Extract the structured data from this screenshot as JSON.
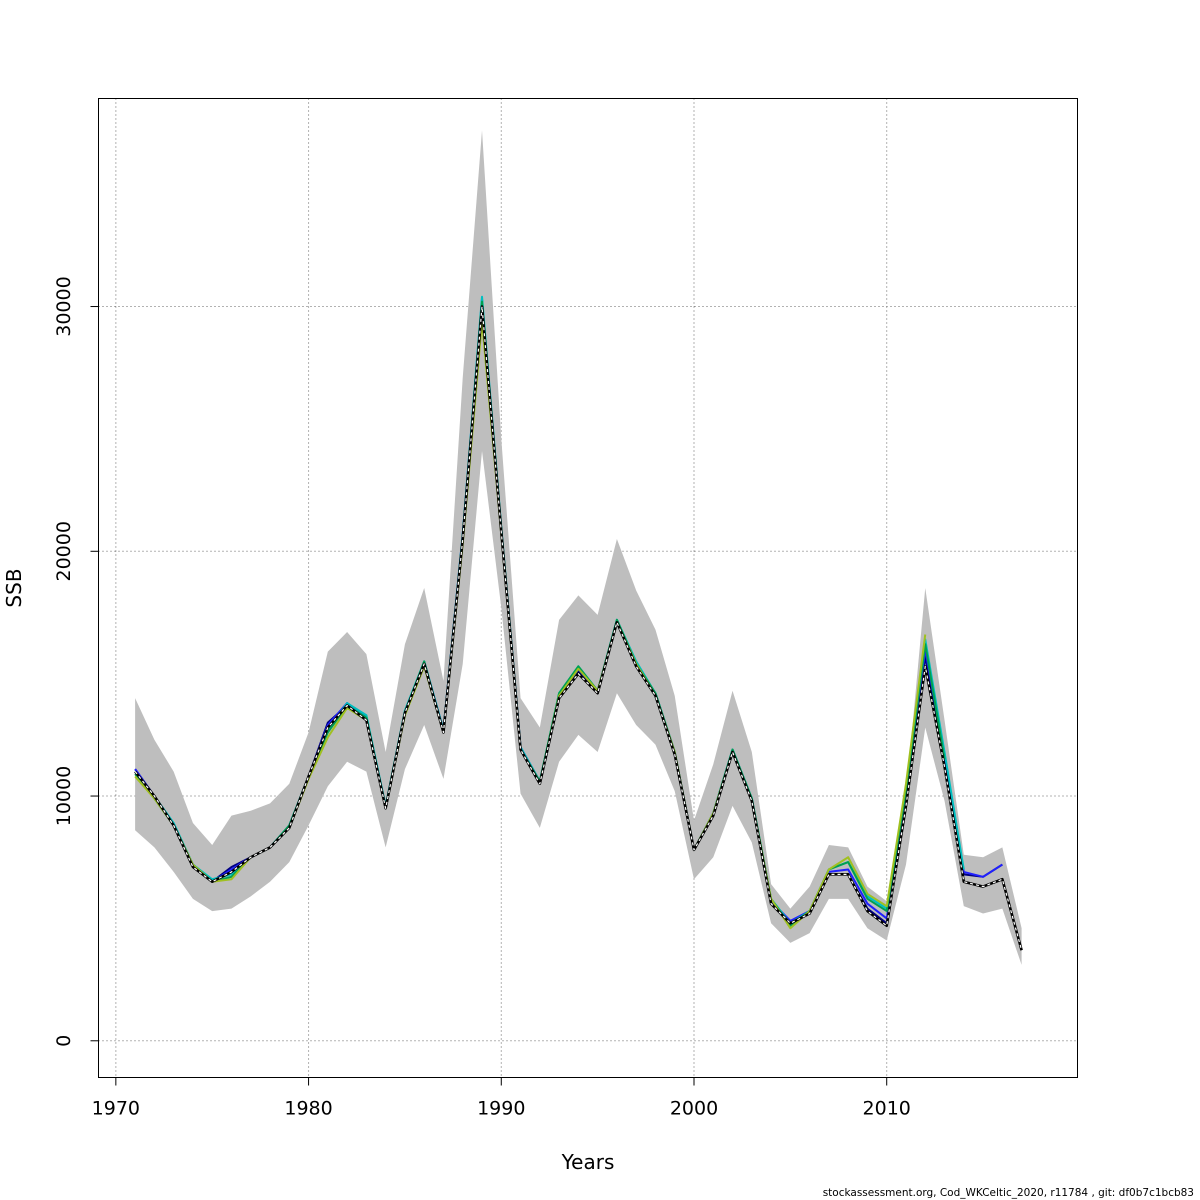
{
  "chart_data": {
    "type": "line",
    "xlabel": "Years",
    "ylabel": "SSB",
    "xlim": [
      1969.1,
      2019.9
    ],
    "ylim": [
      -1500,
      38500
    ],
    "x_ticks": [
      1970,
      1980,
      1990,
      2000,
      2010
    ],
    "y_ticks": [
      0,
      10000,
      20000,
      30000
    ],
    "grid": true,
    "confidence_band": {
      "color": "#bebebe",
      "x": [
        1971,
        1972,
        1973,
        1974,
        1975,
        1976,
        1977,
        1978,
        1979,
        1980,
        1981,
        1982,
        1983,
        1984,
        1985,
        1986,
        1987,
        1988,
        1989,
        1990,
        1991,
        1992,
        1993,
        1994,
        1995,
        1996,
        1997,
        1998,
        1999,
        2000,
        2001,
        2002,
        2003,
        2004,
        2005,
        2006,
        2007,
        2008,
        2009,
        2010,
        2011,
        2012,
        2013,
        2014,
        2015,
        2016,
        2017
      ],
      "lower": [
        8600,
        7900,
        6900,
        5800,
        5300,
        5400,
        5900,
        6500,
        7300,
        8800,
        10400,
        11400,
        11000,
        7900,
        11100,
        12900,
        10700,
        15400,
        24100,
        17700,
        10100,
        8700,
        11400,
        12500,
        11800,
        14200,
        12900,
        12100,
        10200,
        6600,
        7500,
        9600,
        8100,
        4800,
        4000,
        4400,
        5800,
        5800,
        4600,
        4100,
        7200,
        12800,
        9800,
        5500,
        5200,
        5400,
        3100
      ],
      "upper": [
        14000,
        12300,
        11000,
        8900,
        8000,
        9200,
        9400,
        9700,
        10500,
        12600,
        15900,
        16700,
        15800,
        11800,
        16200,
        18500,
        14700,
        27100,
        37200,
        24600,
        14000,
        12800,
        17200,
        18200,
        17400,
        20500,
        18400,
        16800,
        14100,
        9000,
        11300,
        14300,
        11800,
        6400,
        5400,
        6300,
        8000,
        7900,
        6300,
        5700,
        10000,
        18500,
        13100,
        7600,
        7500,
        7900,
        4600
      ]
    },
    "series": [
      {
        "color": "#000080",
        "x": [
          1971,
          1972,
          1973,
          1974,
          1975,
          1976,
          1977,
          1978,
          1979,
          1980,
          1981,
          1982,
          1983,
          1984,
          1985,
          1986,
          1987,
          1988,
          1989,
          1990,
          1991,
          1992,
          1993,
          1994,
          1995,
          1996,
          1997,
          1998,
          1999,
          2000,
          2001,
          2002,
          2003,
          2004,
          2005,
          2006,
          2007,
          2008,
          2009,
          2010,
          2011,
          2012,
          2013,
          2014,
          2015,
          2016
        ],
        "values": [
          11100,
          10000,
          8800,
          7100,
          6500,
          7100,
          7500,
          7900,
          8700,
          10800,
          13000,
          13700,
          13200,
          9500,
          13400,
          15400,
          12600,
          20600,
          30100,
          20800,
          11900,
          10500,
          14000,
          15100,
          14300,
          17100,
          15300,
          14100,
          11700,
          7800,
          9200,
          11800,
          9800,
          5600,
          4800,
          5300,
          6800,
          6800,
          5400,
          4800,
          9800,
          15700,
          11400,
          6800,
          6700,
          7200
        ]
      },
      {
        "color": "#2020ff",
        "x": [
          1971,
          1972,
          1973,
          1974,
          1975,
          1976,
          1977,
          1978,
          1979,
          1980,
          1981,
          1982,
          1983,
          1984,
          1985,
          1986,
          1987,
          1988,
          1989,
          1990,
          1991,
          1992,
          1993,
          1994,
          1995,
          1996,
          1997,
          1998,
          1999,
          2000,
          2001,
          2002,
          2003,
          2004,
          2005,
          2006,
          2007,
          2008,
          2009,
          2010,
          2011,
          2012,
          2013,
          2014,
          2015,
          2016
        ],
        "values": [
          11100,
          10000,
          8800,
          7200,
          6500,
          7000,
          7500,
          7900,
          8800,
          10800,
          12900,
          13800,
          13200,
          9500,
          13400,
          15500,
          12700,
          20700,
          30300,
          20900,
          12000,
          10600,
          14100,
          15200,
          14300,
          17200,
          15400,
          14200,
          11800,
          7800,
          9300,
          11900,
          9900,
          5700,
          4900,
          5300,
          6900,
          7000,
          5600,
          5000,
          10000,
          16000,
          11600,
          6900,
          6700,
          7200
        ]
      },
      {
        "color": "#00bfbf",
        "x": [
          1971,
          1972,
          1973,
          1974,
          1975,
          1976,
          1977,
          1978,
          1979,
          1980,
          1981,
          1982,
          1983,
          1984,
          1985,
          1986,
          1987,
          1988,
          1989,
          1990,
          1991,
          1992,
          1993,
          1994,
          1995,
          1996,
          1997,
          1998,
          1999,
          2000,
          2001,
          2002,
          2003,
          2004,
          2005,
          2006,
          2007,
          2008,
          2009,
          2010,
          2011,
          2012,
          2013,
          2014
        ],
        "values": [
          11000,
          10000,
          8900,
          7200,
          6600,
          6800,
          7500,
          7900,
          8800,
          10800,
          12700,
          13800,
          13300,
          9600,
          13500,
          15500,
          12700,
          20700,
          30400,
          21000,
          12000,
          10600,
          14200,
          15300,
          14300,
          17200,
          15500,
          14200,
          11800,
          7800,
          9300,
          11900,
          9900,
          5800,
          4800,
          5300,
          7000,
          7300,
          5900,
          5400,
          10400,
          16400,
          11800,
          7000
        ]
      },
      {
        "color": "#00a050",
        "x": [
          1971,
          1972,
          1973,
          1974,
          1975,
          1976,
          1977,
          1978,
          1979,
          1980,
          1981,
          1982,
          1983,
          1984,
          1985,
          1986,
          1987,
          1988,
          1989,
          1990,
          1991,
          1992,
          1993,
          1994,
          1995,
          1996,
          1997,
          1998,
          1999,
          2000,
          2001,
          2002,
          2003,
          2004,
          2005,
          2006,
          2007,
          2008,
          2009,
          2010,
          2011,
          2012,
          2013
        ],
        "values": [
          10900,
          9900,
          8800,
          7200,
          6500,
          6700,
          7500,
          7900,
          8800,
          10800,
          12600,
          13700,
          13200,
          9500,
          13400,
          15500,
          12600,
          20600,
          30200,
          20900,
          11900,
          10600,
          14200,
          15300,
          14300,
          17200,
          15400,
          14200,
          11800,
          7800,
          9300,
          11900,
          9900,
          5800,
          4700,
          5300,
          7000,
          7300,
          5800,
          5300,
          10200,
          16200,
          11500
        ]
      },
      {
        "color": "#a0c020",
        "x": [
          1971,
          1972,
          1973,
          1974,
          1975,
          1976,
          1977,
          1978,
          1979,
          1980,
          1981,
          1982,
          1983,
          1984,
          1985,
          1986,
          1987,
          1988,
          1989,
          1990,
          1991,
          1992,
          1993,
          1994,
          1995,
          1996,
          1997,
          1998,
          1999,
          2000,
          2001,
          2002,
          2003,
          2004,
          2005,
          2006,
          2007,
          2008,
          2009,
          2010,
          2011,
          2012
        ],
        "values": [
          10800,
          9900,
          8800,
          7200,
          6500,
          6600,
          7500,
          7900,
          8700,
          10700,
          12400,
          13600,
          13100,
          9500,
          13300,
          15300,
          12600,
          20300,
          29400,
          20700,
          11900,
          10500,
          14100,
          15200,
          14300,
          17100,
          15400,
          14100,
          11800,
          7800,
          9300,
          11800,
          9800,
          5800,
          4600,
          5300,
          7000,
          7500,
          6000,
          5500,
          10500,
          16600
        ]
      },
      {
        "color": "#000000",
        "dashed": true,
        "x": [
          1971,
          1972,
          1973,
          1974,
          1975,
          1976,
          1977,
          1978,
          1979,
          1980,
          1981,
          1982,
          1983,
          1984,
          1985,
          1986,
          1987,
          1988,
          1989,
          1990,
          1991,
          1992,
          1993,
          1994,
          1995,
          1996,
          1997,
          1998,
          1999,
          2000,
          2001,
          2002,
          2003,
          2004,
          2005,
          2006,
          2007,
          2008,
          2009,
          2010,
          2011,
          2012,
          2013,
          2014,
          2015,
          2016,
          2017
        ],
        "values": [
          11000,
          10000,
          8800,
          7100,
          6500,
          6900,
          7500,
          7900,
          8700,
          10800,
          12800,
          13700,
          13100,
          9500,
          13400,
          15400,
          12600,
          20500,
          30000,
          20800,
          11900,
          10500,
          14000,
          15000,
          14200,
          17100,
          15300,
          14100,
          11700,
          7800,
          9200,
          11800,
          9800,
          5600,
          4800,
          5200,
          6800,
          6800,
          5300,
          4700,
          9600,
          15300,
          11200,
          6500,
          6300,
          6600,
          3700
        ]
      }
    ]
  },
  "footer_text": "stockassessment.org, Cod_WKCeltic_2020, r11784 , git: df0b7c1bcb83"
}
